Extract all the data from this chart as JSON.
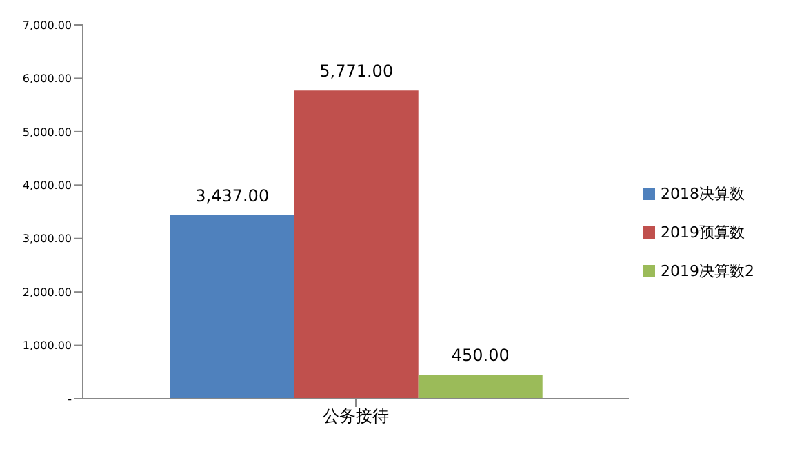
{
  "chart_data": {
    "type": "bar",
    "categories": [
      "公务接待"
    ],
    "series": [
      {
        "name": "2018决算数",
        "color": "#4f81bd",
        "values": [
          3437
        ]
      },
      {
        "name": "2019预算数",
        "color": "#c0504d",
        "values": [
          5771
        ]
      },
      {
        "name": "2019决算数2",
        "color": "#9bbb59",
        "values": [
          450
        ]
      }
    ],
    "value_labels": [
      "3,437.00",
      "5,771.00",
      "450.00"
    ],
    "ylim": [
      0,
      7000
    ],
    "yticks": [
      {
        "value": 0,
        "label": "-"
      },
      {
        "value": 1000,
        "label": "1,000.00"
      },
      {
        "value": 2000,
        "label": "2,000.00"
      },
      {
        "value": 3000,
        "label": "3,000.00"
      },
      {
        "value": 4000,
        "label": "4,000.00"
      },
      {
        "value": 5000,
        "label": "5,000.00"
      },
      {
        "value": 6000,
        "label": "6,000.00"
      },
      {
        "value": 7000,
        "label": "7,000.00"
      }
    ],
    "grid": false,
    "legend": "right"
  }
}
